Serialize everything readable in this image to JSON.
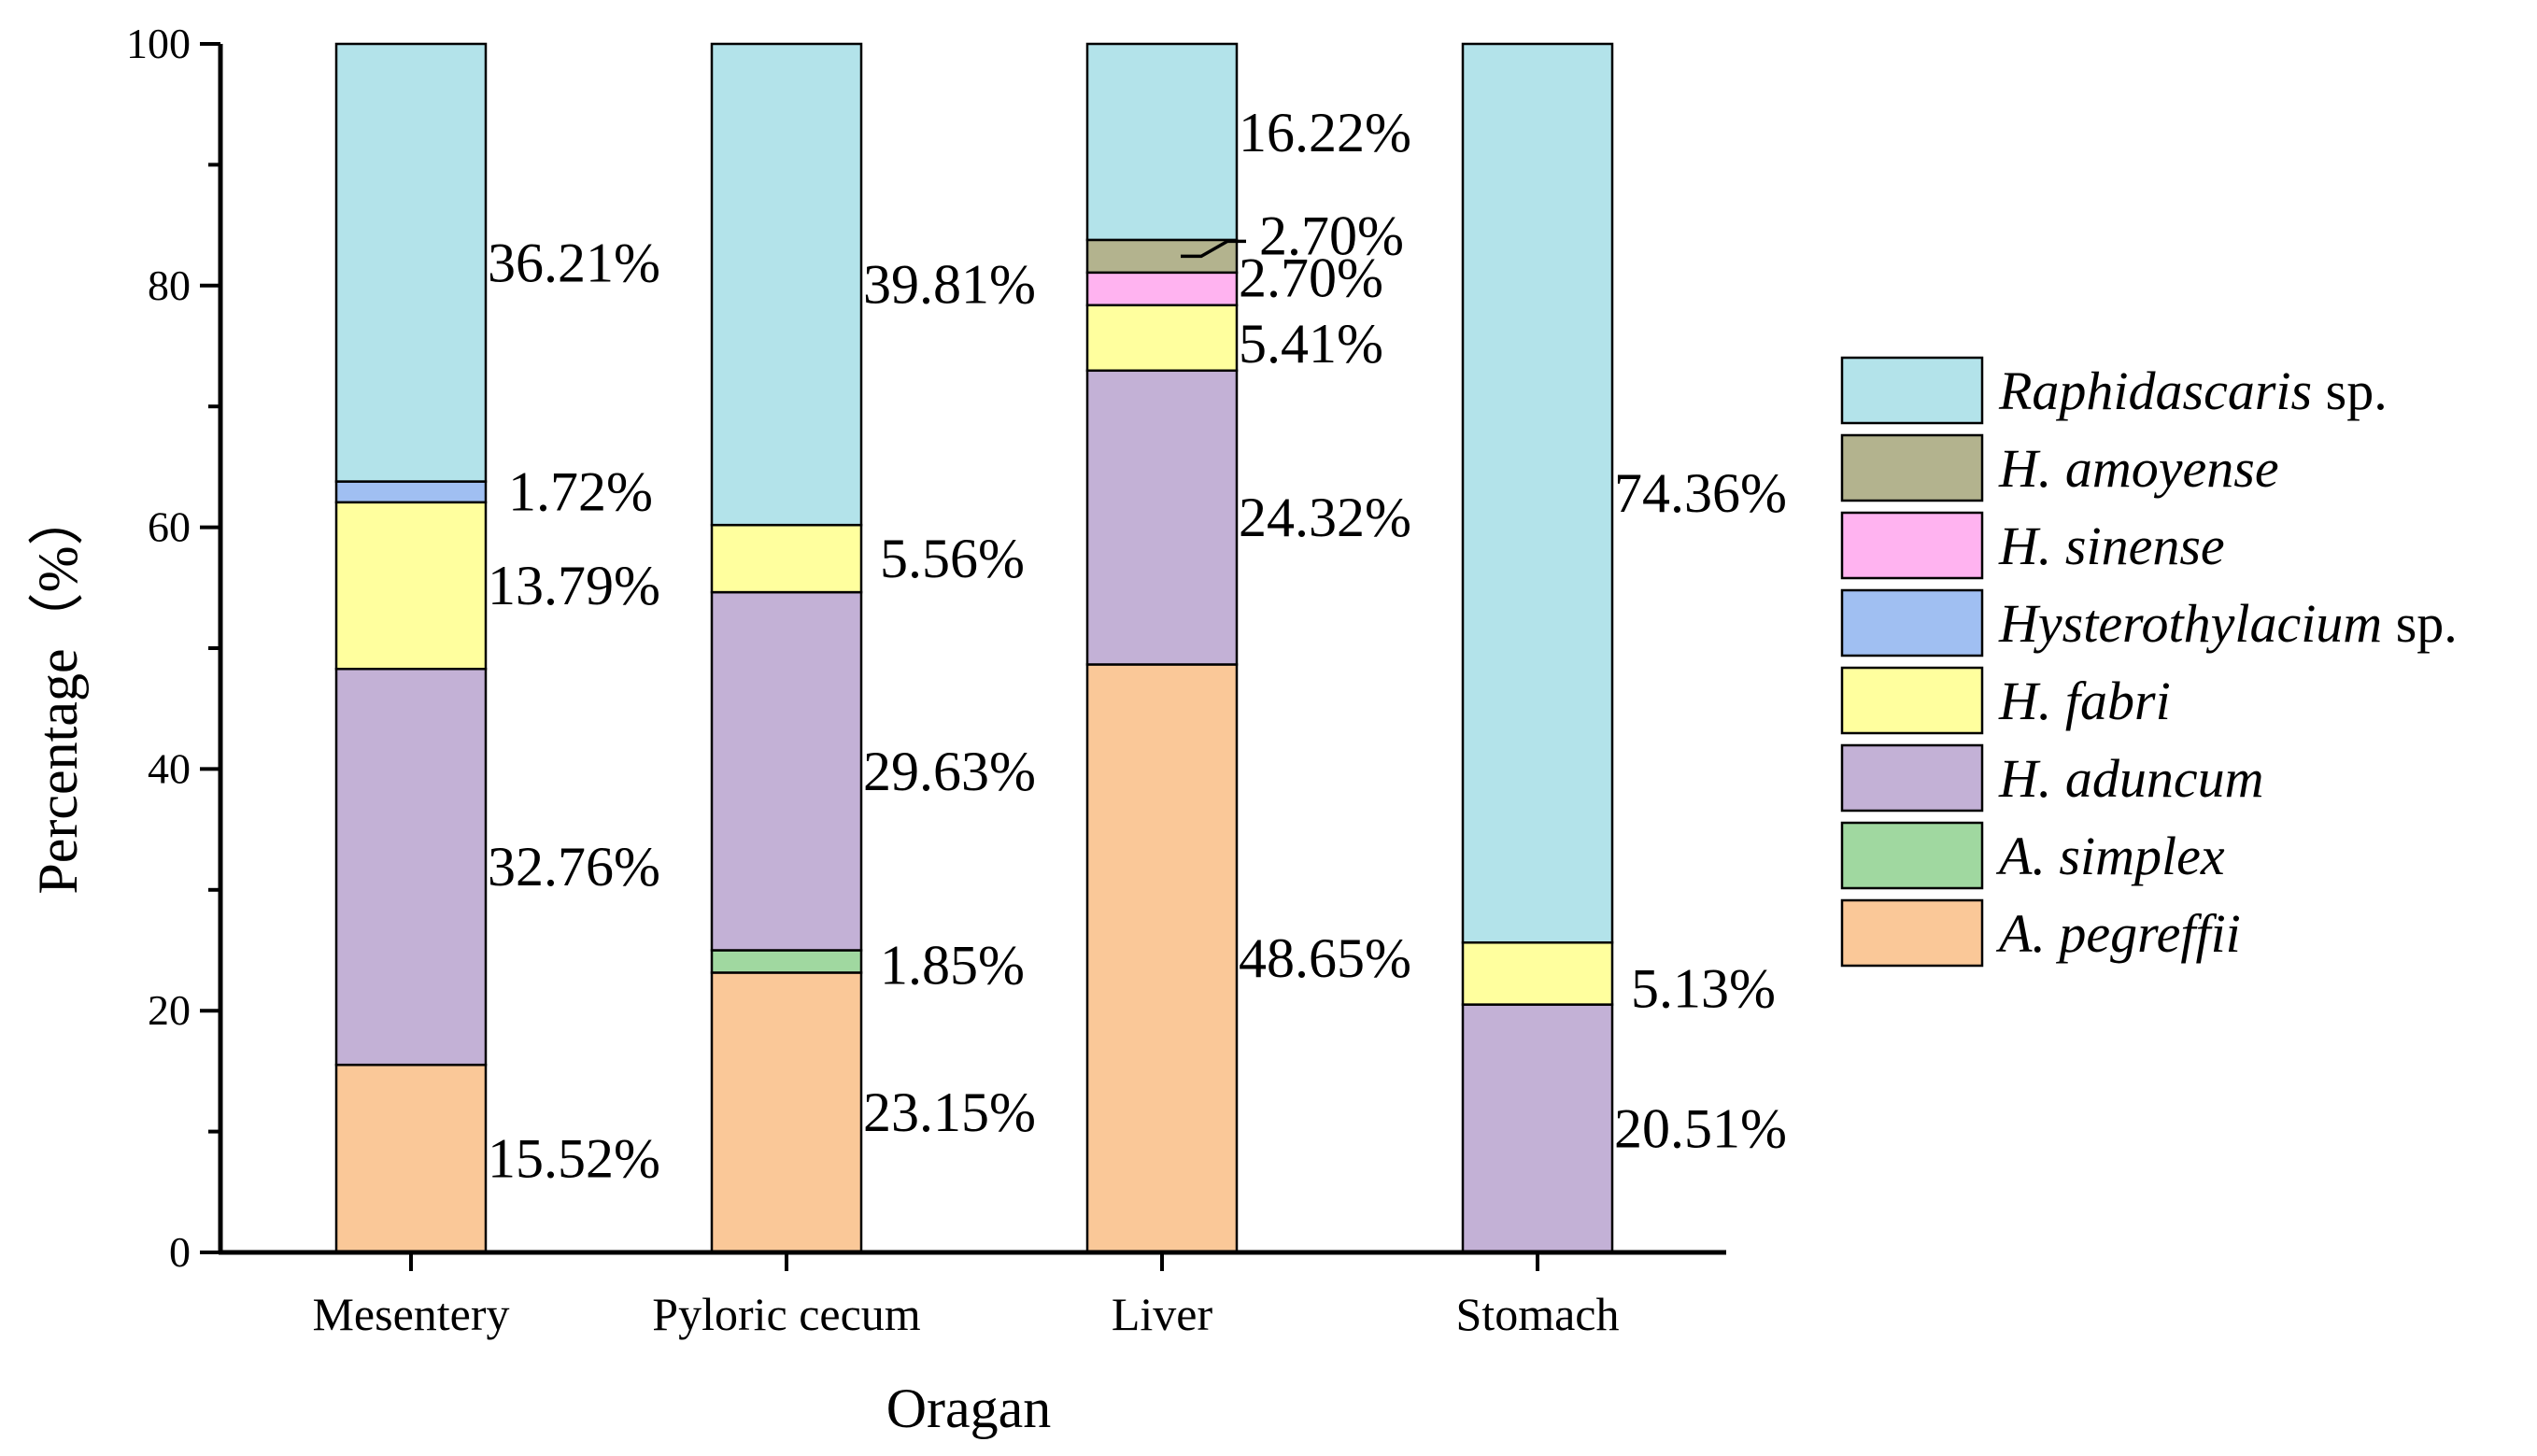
{
  "chart_data": {
    "type": "stacked-bar",
    "title": "",
    "xlabel": "Oragan",
    "ylabel": "Percentage（%）",
    "ylim": [
      0,
      100
    ],
    "yticks": [
      0,
      20,
      40,
      60,
      80,
      100
    ],
    "categories": [
      "Mesentery",
      "Pyloric cecum",
      "Liver",
      "Stomach"
    ],
    "series": [
      {
        "name": "A. pegreffii",
        "genus": "A. pegreffii",
        "suffix": "",
        "color": "#FAC898",
        "values": [
          15.52,
          23.15,
          48.65,
          0
        ],
        "labels": [
          "15.52%",
          "23.15%",
          "48.65%",
          ""
        ]
      },
      {
        "name": "A. simplex",
        "genus": "A. simplex",
        "suffix": "",
        "color": "#A0D8A0",
        "values": [
          0,
          1.85,
          0,
          0
        ],
        "labels": [
          "",
          "1.85%",
          "",
          ""
        ]
      },
      {
        "name": "H. aduncum",
        "genus": "H. aduncum",
        "suffix": "",
        "color": "#C3B1D6",
        "values": [
          32.76,
          29.63,
          24.32,
          20.51
        ],
        "labels": [
          "32.76%",
          "29.63%",
          "24.32%",
          "20.51%"
        ]
      },
      {
        "name": "H. fabri",
        "genus": "H. fabri",
        "suffix": "",
        "color": "#FFFF9E",
        "values": [
          13.79,
          5.56,
          5.41,
          5.13
        ],
        "labels": [
          "13.79%",
          "5.56%",
          "5.41%",
          "5.13%"
        ]
      },
      {
        "name": "Hysterothylacium sp.",
        "genus": "Hysterothylacium",
        "suffix": " sp.",
        "color": "#A0BFF2",
        "values": [
          1.72,
          0,
          0,
          0
        ],
        "labels": [
          "1.72%",
          "",
          "",
          ""
        ]
      },
      {
        "name": "H. sinense",
        "genus": "H. sinense",
        "suffix": "",
        "color": "#FFB3F0",
        "values": [
          0,
          0,
          2.7,
          0
        ],
        "labels": [
          "",
          "",
          "2.70%",
          ""
        ]
      },
      {
        "name": "H. amoyense",
        "genus": "H. amoyense",
        "suffix": "",
        "color": "#B3B38E",
        "values": [
          0,
          0,
          2.7,
          0
        ],
        "labels": [
          "",
          "",
          "2.70%",
          ""
        ]
      },
      {
        "name": "Raphidascaris sp.",
        "genus": "Raphidascaris",
        "suffix": " sp.",
        "color": "#B3E3EA",
        "values": [
          36.21,
          39.81,
          16.22,
          74.36
        ],
        "labels": [
          "36.21%",
          "39.81%",
          "16.22%",
          "74.36%"
        ]
      }
    ],
    "legend_order": [
      "Raphidascaris sp.",
      "H. amoyense",
      "H. sinense",
      "Hysterothylacium sp.",
      "H. fabri",
      "H. aduncum",
      "A. simplex",
      "A. pegreffii"
    ],
    "legend_position": "right",
    "grid": false
  }
}
